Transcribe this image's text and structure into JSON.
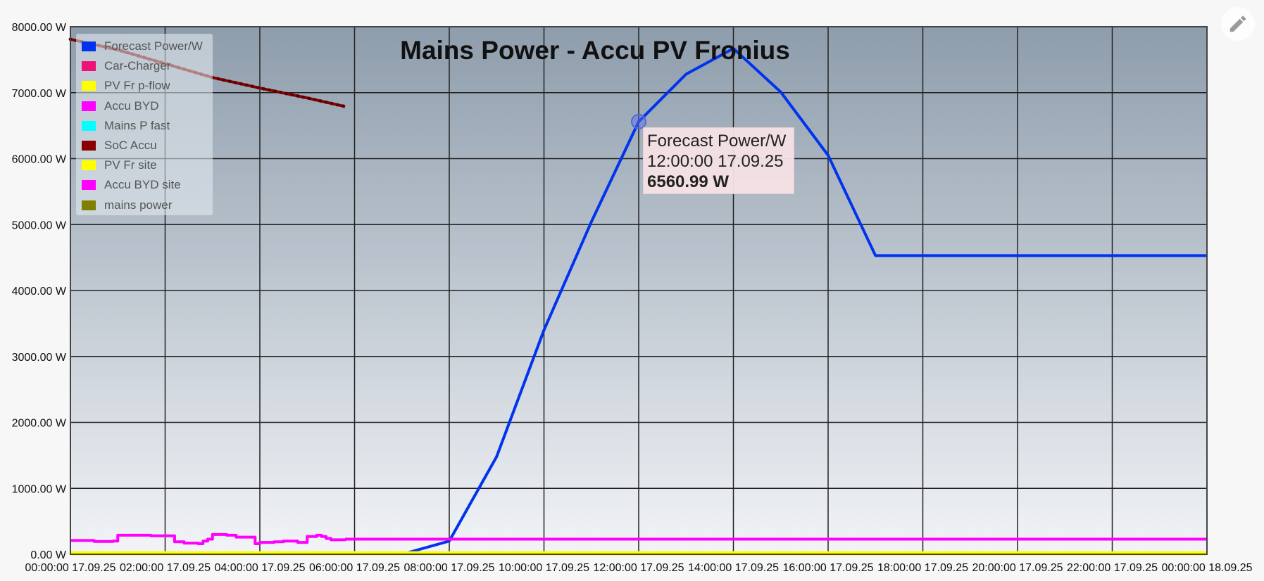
{
  "edit_icon": "pencil-icon",
  "chart_data": {
    "type": "line",
    "title": "Mains Power - Accu PV Fronius",
    "ylim": [
      0,
      8000
    ],
    "y_ticks": [
      "8000.00 W",
      "7000.00 W",
      "6000.00 W",
      "5000.00 W",
      "4000.00 W",
      "3000.00 W",
      "2000.00 W",
      "1000.00 W",
      "0.00 W"
    ],
    "x_ticks": [
      "00:00:00 17.09.25",
      "02:00:00 17.09.25",
      "04:00:00 17.09.25",
      "06:00:00 17.09.25",
      "08:00:00 17.09.25",
      "10:00:00 17.09.25",
      "12:00:00 17.09.25",
      "14:00:00 17.09.25",
      "16:00:00 17.09.25",
      "18:00:00 17.09.25",
      "20:00:00 17.09.25",
      "22:00:00 17.09.25",
      "00:00:00 18.09.25"
    ],
    "xlim_hours": [
      0,
      24
    ],
    "grid": true,
    "legend_placement": "top-left",
    "series": [
      {
        "name": "Forecast Power/W",
        "color": "#0033ee",
        "x": [
          7,
          8,
          9,
          10,
          11,
          12,
          13,
          14,
          15,
          16,
          17,
          24
        ],
        "y": [
          0,
          200,
          1480,
          3400,
          5040,
          6560.99,
          7280,
          7670,
          7010,
          6050,
          4530,
          4530
        ]
      },
      {
        "name": "Car-Charger",
        "color": "#ee1177",
        "x": [],
        "y": []
      },
      {
        "name": "PV Fr p-flow",
        "color": "#ffff00",
        "x": [
          0,
          24
        ],
        "y": [
          15,
          15
        ]
      },
      {
        "name": "Accu BYD",
        "color": "#ff00ff",
        "x": [
          0,
          0.5,
          0.9,
          1.0,
          1.6,
          1.7,
          2.2,
          2.4,
          2.7,
          2.8,
          2.9,
          3.0,
          3.3,
          3.5,
          3.9,
          4.0,
          4.3,
          4.5,
          4.8,
          5.0,
          5.2,
          5.3,
          5.4,
          5.5,
          5.8
        ],
        "y": [
          210,
          195,
          200,
          290,
          290,
          280,
          190,
          170,
          160,
          200,
          230,
          300,
          290,
          260,
          160,
          180,
          190,
          200,
          180,
          270,
          290,
          270,
          240,
          220,
          240
        ]
      },
      {
        "name": "Mains P fast",
        "color": "#00ffff",
        "x": [],
        "y": []
      },
      {
        "name": "SoC Accu",
        "color": "#880000",
        "x": [
          0,
          1,
          2,
          3,
          4,
          5,
          5.8
        ],
        "y": [
          7810,
          7650,
          7440,
          7230,
          7070,
          6920,
          6790
        ]
      },
      {
        "name": "PV Fr site",
        "color": "#ffff00",
        "x": [],
        "y": []
      },
      {
        "name": "Accu BYD site",
        "color": "#ff00ff",
        "x": [
          5.8,
          24
        ],
        "y": [
          230,
          230
        ]
      },
      {
        "name": "mains power",
        "color": "#808000",
        "x": [],
        "y": []
      }
    ],
    "tooltip": {
      "series": "Forecast Power/W",
      "x_hour": 12,
      "time": "12:00:00 17.09.25",
      "value": "6560.99 W"
    }
  }
}
